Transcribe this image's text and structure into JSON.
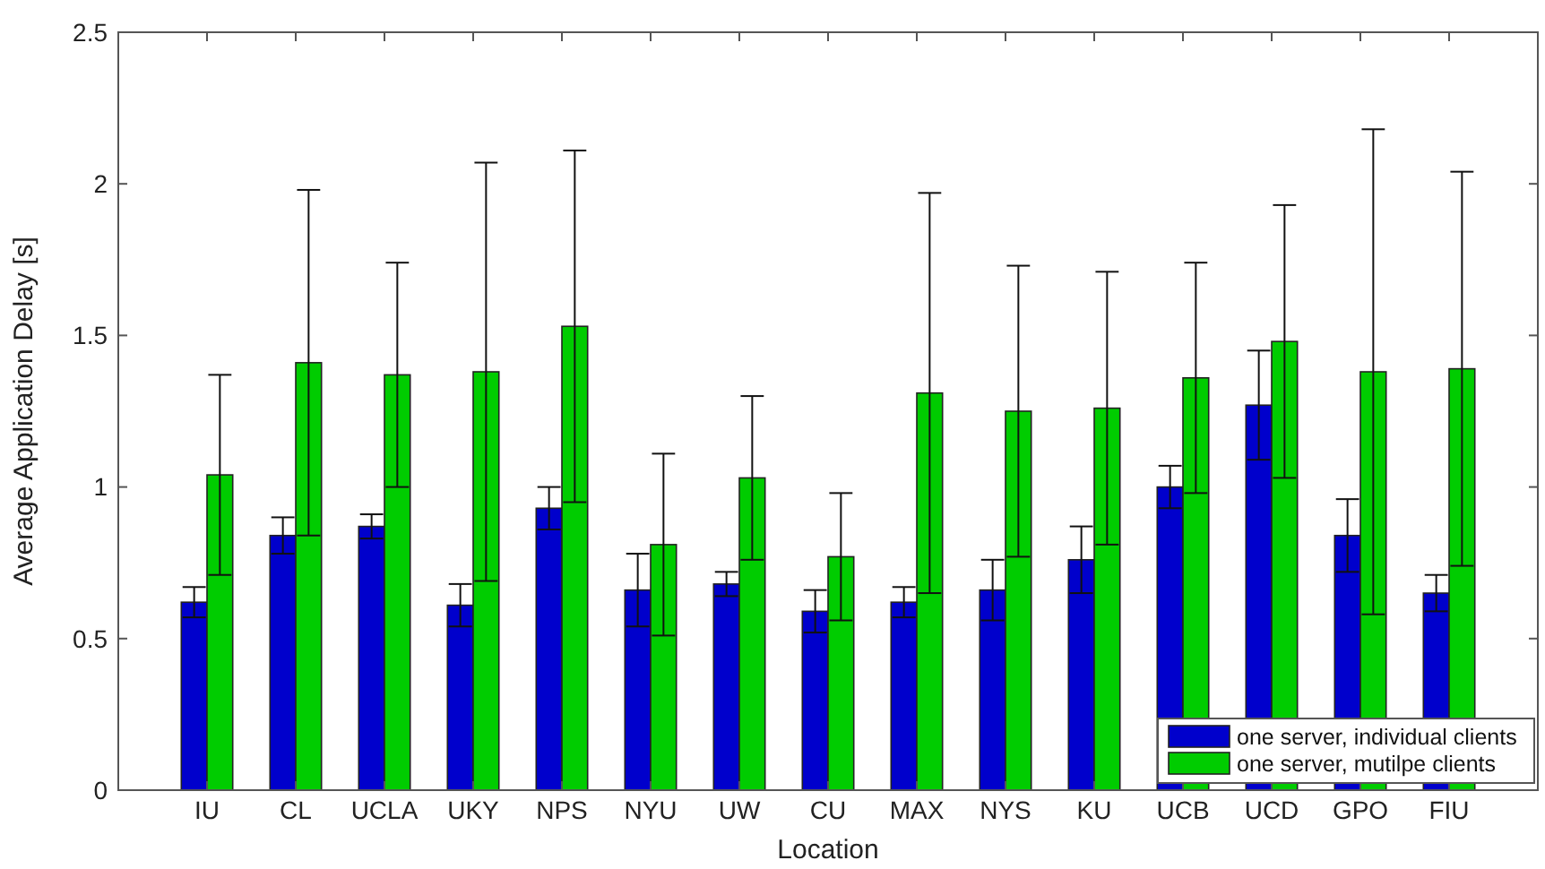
{
  "chart_data": {
    "type": "bar",
    "xlabel": "Location",
    "ylabel": "Average Application Delay [s]",
    "categories": [
      "IU",
      "CL",
      "UCLA",
      "UKY",
      "NPS",
      "NYU",
      "UW",
      "CU",
      "MAX",
      "NYS",
      "KU",
      "UCB",
      "UCD",
      "GPO",
      "FIU"
    ],
    "series": [
      {
        "name": "one server, individual clients",
        "color": "#0000cc",
        "values": [
          0.62,
          0.84,
          0.87,
          0.61,
          0.93,
          0.66,
          0.68,
          0.59,
          0.62,
          0.66,
          0.76,
          1.0,
          1.27,
          0.84,
          0.65
        ],
        "errors": [
          0.05,
          0.06,
          0.04,
          0.07,
          0.07,
          0.12,
          0.04,
          0.07,
          0.05,
          0.1,
          0.11,
          0.07,
          0.18,
          0.12,
          0.06
        ]
      },
      {
        "name": "one server, mutilpe clients",
        "color": "#00cc00",
        "values": [
          1.04,
          1.41,
          1.37,
          1.38,
          1.53,
          0.81,
          1.03,
          0.77,
          1.31,
          1.25,
          1.26,
          1.36,
          1.48,
          1.38,
          1.39
        ],
        "errors": [
          0.33,
          0.57,
          0.37,
          0.69,
          0.58,
          0.3,
          0.27,
          0.21,
          0.66,
          0.48,
          0.45,
          0.38,
          0.45,
          0.8,
          0.65
        ]
      }
    ],
    "ylim": [
      0,
      2.5
    ],
    "yticks": [
      0,
      0.5,
      1,
      1.5,
      2,
      2.5
    ],
    "grid": false,
    "legend": "bottom right"
  }
}
